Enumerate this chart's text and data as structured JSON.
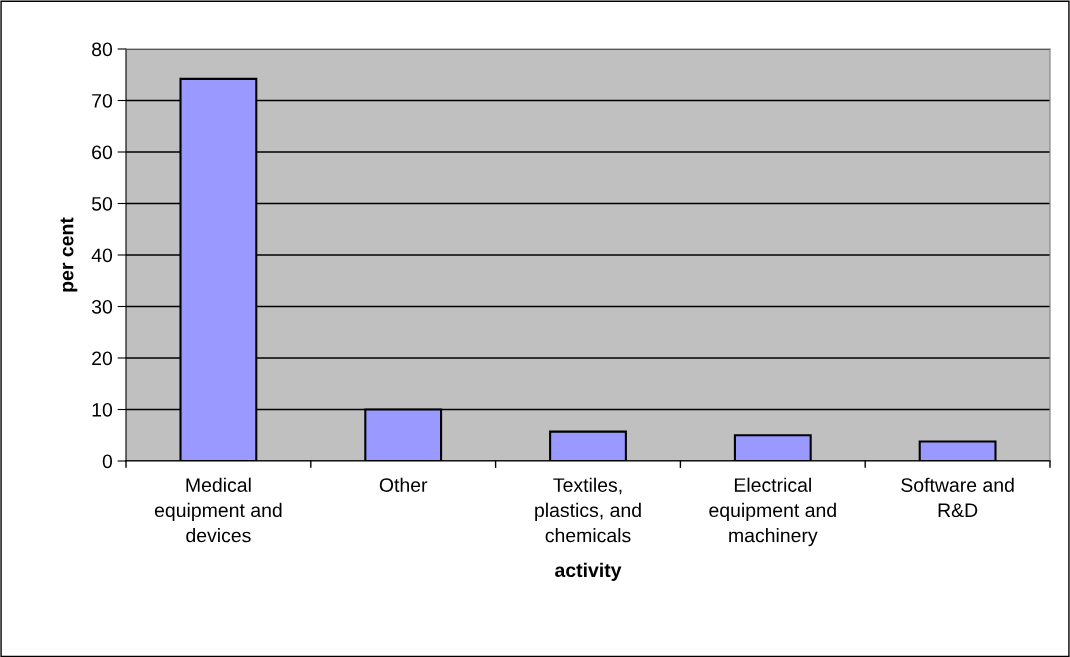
{
  "chart_data": {
    "type": "bar",
    "xlabel": "activity",
    "ylabel": "per cent",
    "categories": [
      "Medical\nequipment and\ndevices",
      "Other",
      "Textiles,\nplastics, and\nchemicals",
      "Electrical\nequipment and\nmachinery",
      "Software and\nR&D"
    ],
    "values": [
      74.2,
      10,
      5.7,
      5,
      3.8
    ],
    "color": "#9999ff",
    "ylim": [
      0,
      80
    ],
    "yticks": [
      0,
      10,
      20,
      30,
      40,
      50,
      60,
      70,
      80
    ],
    "grid": "y",
    "legend": false
  }
}
